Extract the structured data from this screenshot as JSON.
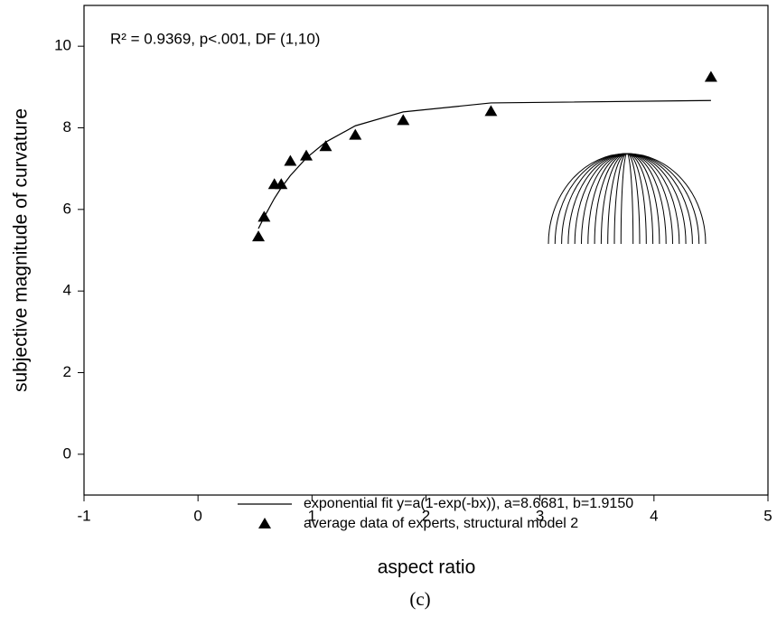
{
  "chart_data": {
    "type": "scatter",
    "annotation": "R² = 0.9369, p<.001, DF (1,10)",
    "xlabel": "aspect ratio",
    "ylabel": "subjective magnitude of curvature",
    "caption": "(c)",
    "xlim": [
      -1,
      5
    ],
    "xticks": [
      -1,
      0,
      1,
      2,
      3,
      4,
      5
    ],
    "ylim": [
      -1,
      11
    ],
    "yticks": [
      0,
      2,
      4,
      6,
      8,
      10
    ],
    "series": [
      {
        "name": "exponential fit y=a(1-exp(-bx)), a=8.6681, b=1.9150",
        "type": "line",
        "color": "#000000",
        "x": [
          0.53,
          0.58,
          0.67,
          0.73,
          0.81,
          0.95,
          1.12,
          1.38,
          1.8,
          2.57,
          4.5
        ],
        "values": [
          5.53,
          5.81,
          6.27,
          6.53,
          6.83,
          7.26,
          7.65,
          8.05,
          8.39,
          8.61,
          8.67
        ]
      },
      {
        "name": "average data of experts, structural model 2",
        "type": "scatter",
        "color": "#000000",
        "x": [
          0.53,
          0.58,
          0.67,
          0.73,
          0.81,
          0.95,
          1.12,
          1.38,
          1.8,
          2.57,
          4.5
        ],
        "values": [
          5.33,
          5.81,
          6.61,
          6.61,
          7.18,
          7.31,
          7.54,
          7.82,
          8.18,
          8.4,
          9.24
        ]
      }
    ]
  }
}
